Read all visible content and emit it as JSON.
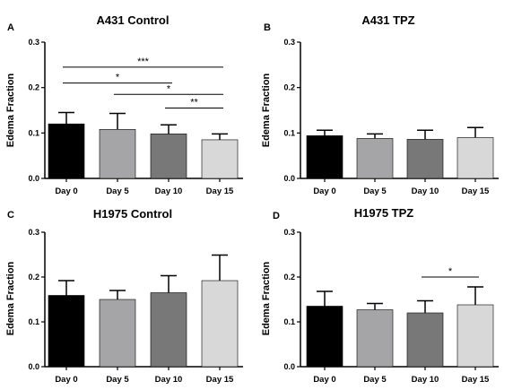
{
  "chart_data": [
    {
      "type": "bar",
      "panel_label": "A",
      "title": "A431 Control",
      "ylabel": "Edema Fraction",
      "xlabel": "",
      "categories": [
        "Day 0",
        "Day 5",
        "Day 10",
        "Day 15"
      ],
      "values": [
        0.12,
        0.108,
        0.098,
        0.085
      ],
      "errors": [
        0.025,
        0.035,
        0.02,
        0.013
      ],
      "colors": [
        "#000000",
        "#a5a5a8",
        "#787878",
        "#d8d8d8"
      ],
      "ylim": [
        0,
        0.3
      ],
      "yticks": [
        "0.0",
        "0.1",
        "0.2",
        "0.3"
      ],
      "significance": [
        {
          "from": 0,
          "to": 3,
          "y": 0.245,
          "label": "***"
        },
        {
          "from": 0,
          "to": 2,
          "y": 0.21,
          "label": "*"
        },
        {
          "from": 1,
          "to": 3,
          "y": 0.185,
          "label": "*"
        },
        {
          "from": 2,
          "to": 3,
          "y": 0.155,
          "label": "**"
        }
      ]
    },
    {
      "type": "bar",
      "panel_label": "B",
      "title": "A431 TPZ",
      "ylabel": "Edema Fraction",
      "xlabel": "",
      "categories": [
        "Day 0",
        "Day 5",
        "Day 10",
        "Day 15"
      ],
      "values": [
        0.094,
        0.088,
        0.086,
        0.09
      ],
      "errors": [
        0.012,
        0.01,
        0.02,
        0.022
      ],
      "colors": [
        "#000000",
        "#a5a5a8",
        "#787878",
        "#d8d8d8"
      ],
      "ylim": [
        0,
        0.3
      ],
      "yticks": [
        "0.0",
        "0.1",
        "0.2",
        "0.3"
      ],
      "significance": []
    },
    {
      "type": "bar",
      "panel_label": "C",
      "title": "H1975 Control",
      "ylabel": "Edema Fraction",
      "xlabel": "",
      "categories": [
        "Day 0",
        "Day 5",
        "Day 10",
        "Day 15"
      ],
      "values": [
        0.159,
        0.15,
        0.165,
        0.192
      ],
      "errors": [
        0.033,
        0.02,
        0.038,
        0.057
      ],
      "colors": [
        "#000000",
        "#a5a5a8",
        "#787878",
        "#d8d8d8"
      ],
      "ylim": [
        0,
        0.3
      ],
      "yticks": [
        "0.0",
        "0.1",
        "0.2",
        "0.3"
      ],
      "significance": []
    },
    {
      "type": "bar",
      "panel_label": "D",
      "title": "H1975 TPZ",
      "ylabel": "Edema Fraction",
      "xlabel": "",
      "categories": [
        "Day 0",
        "Day 5",
        "Day 10",
        "Day 15"
      ],
      "values": [
        0.135,
        0.127,
        0.12,
        0.138
      ],
      "errors": [
        0.033,
        0.014,
        0.027,
        0.04
      ],
      "colors": [
        "#000000",
        "#a5a5a8",
        "#787878",
        "#d8d8d8"
      ],
      "ylim": [
        0,
        0.3
      ],
      "yticks": [
        "0.0",
        "0.1",
        "0.2",
        "0.3"
      ],
      "significance": [
        {
          "from": 2,
          "to": 3,
          "y": 0.2,
          "label": "*"
        }
      ]
    }
  ]
}
